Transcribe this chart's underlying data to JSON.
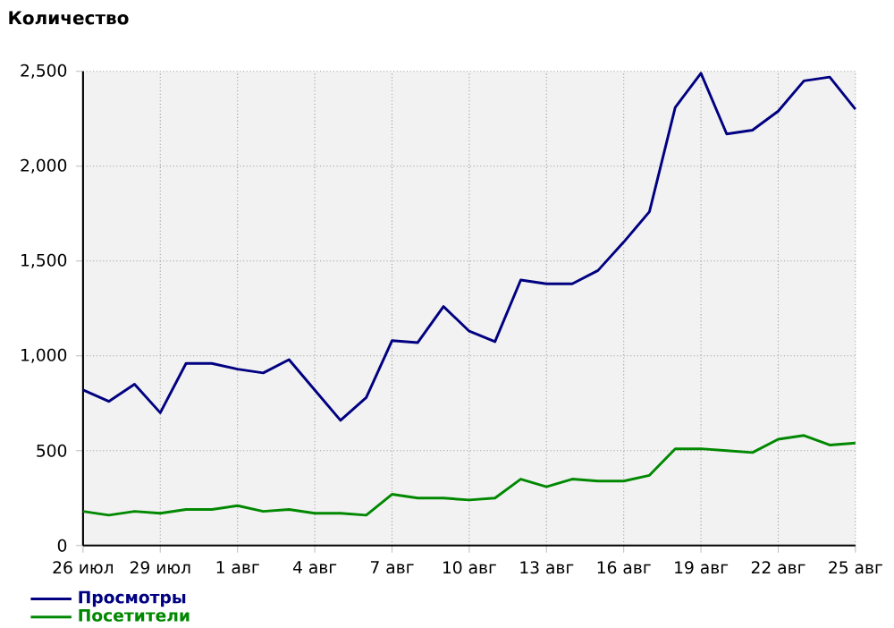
{
  "chart_data": {
    "type": "line",
    "ylabel": "Количество",
    "categories": [
      "26 июл",
      null,
      null,
      "29 июл",
      null,
      null,
      "1 авг",
      null,
      null,
      "4 авг",
      null,
      null,
      "7 авг",
      null,
      null,
      "10 авг",
      null,
      null,
      "13 авг",
      null,
      null,
      "16 авг",
      null,
      null,
      "19 авг",
      null,
      null,
      "22 авг",
      null,
      null,
      "25 авг"
    ],
    "series": [
      {
        "name": "Просмотры",
        "color": "#000080",
        "values": [
          820,
          760,
          850,
          700,
          960,
          960,
          930,
          910,
          980,
          820,
          660,
          780,
          1080,
          1070,
          1260,
          1130,
          1075,
          1400,
          1380,
          1380,
          1450,
          1600,
          1760,
          2310,
          2490,
          2170,
          2190,
          2290,
          2450,
          2470,
          2300
        ]
      },
      {
        "name": "Посетители",
        "color": "#008800",
        "values": [
          180,
          160,
          180,
          170,
          190,
          190,
          210,
          180,
          190,
          170,
          170,
          160,
          270,
          250,
          250,
          240,
          250,
          350,
          310,
          350,
          340,
          340,
          370,
          510,
          510,
          500,
          490,
          560,
          580,
          530,
          540
        ]
      }
    ],
    "ylim": [
      0,
      2500
    ],
    "yticks": [
      {
        "value": 0,
        "label": "0"
      },
      {
        "value": 500,
        "label": "500"
      },
      {
        "value": 1000,
        "label": "1,000"
      },
      {
        "value": 1500,
        "label": "1,500"
      },
      {
        "value": 2000,
        "label": "2,000"
      },
      {
        "value": 2500,
        "label": "2,500"
      }
    ],
    "grid": true,
    "legend": "bottom left"
  }
}
